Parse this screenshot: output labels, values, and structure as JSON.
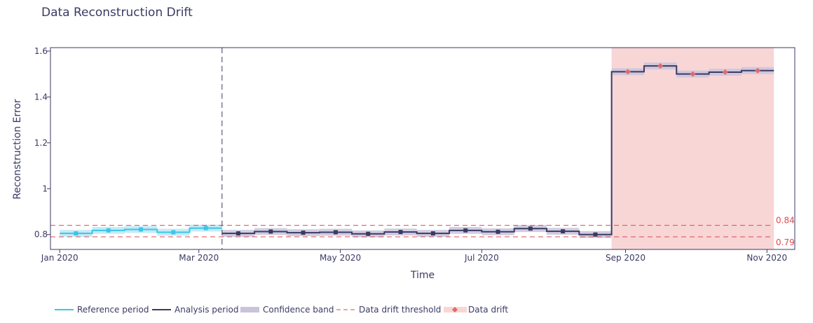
{
  "chart_data": {
    "type": "line",
    "title": "Data Reconstruction Drift",
    "xlabel": "Time",
    "ylabel": "Reconstruction Error",
    "x_ticks": [
      {
        "label": "Jan 2020",
        "date": "2020-01-01"
      },
      {
        "label": "Mar 2020",
        "date": "2020-03-01"
      },
      {
        "label": "May 2020",
        "date": "2020-05-01"
      },
      {
        "label": "Jul 2020",
        "date": "2020-07-01"
      },
      {
        "label": "Sep 2020",
        "date": "2020-09-01"
      },
      {
        "label": "Nov 2020",
        "date": "2020-11-01"
      }
    ],
    "y_ticks": [
      {
        "label": "0.8",
        "value": 0.8
      },
      {
        "label": "1",
        "value": 1.0
      },
      {
        "label": "1.2",
        "value": 1.2
      },
      {
        "label": "1.4",
        "value": 1.4
      },
      {
        "label": "1.6",
        "value": 1.6
      }
    ],
    "xlim": [
      "2019-12-28",
      "2020-11-13"
    ],
    "ylim": [
      0.735,
      1.615
    ],
    "grid": false,
    "legend_position": "bottom",
    "colors": {
      "reference": "#3bc6e8",
      "analysis": "#3b3a64",
      "confidence": "#c9c4dc",
      "threshold": "#dd4b50",
      "drift_marker": "#e26a6a",
      "drift_region": "#f8d6d6",
      "axis": "#3b3a64"
    },
    "series": [
      {
        "name": "Reference period",
        "role": "reference",
        "chunks": [
          {
            "start": "2020-01-01",
            "end": "2020-01-15",
            "value": 0.805,
            "lower": 0.79,
            "upper": 0.82
          },
          {
            "start": "2020-01-15",
            "end": "2020-01-29",
            "value": 0.818,
            "lower": 0.803,
            "upper": 0.833
          },
          {
            "start": "2020-01-29",
            "end": "2020-02-12",
            "value": 0.822,
            "lower": 0.807,
            "upper": 0.837
          },
          {
            "start": "2020-02-12",
            "end": "2020-02-26",
            "value": 0.81,
            "lower": 0.795,
            "upper": 0.825
          },
          {
            "start": "2020-02-26",
            "end": "2020-03-11",
            "value": 0.828,
            "lower": 0.813,
            "upper": 0.843
          }
        ]
      },
      {
        "name": "Analysis period",
        "role": "analysis",
        "chunks": [
          {
            "start": "2020-03-11",
            "end": "2020-03-25",
            "value": 0.805,
            "lower": 0.79,
            "upper": 0.82,
            "drift": false
          },
          {
            "start": "2020-03-25",
            "end": "2020-04-08",
            "value": 0.813,
            "lower": 0.798,
            "upper": 0.828,
            "drift": false
          },
          {
            "start": "2020-04-08",
            "end": "2020-04-22",
            "value": 0.808,
            "lower": 0.793,
            "upper": 0.823,
            "drift": false
          },
          {
            "start": "2020-04-22",
            "end": "2020-05-06",
            "value": 0.81,
            "lower": 0.795,
            "upper": 0.825,
            "drift": false
          },
          {
            "start": "2020-05-06",
            "end": "2020-05-20",
            "value": 0.803,
            "lower": 0.788,
            "upper": 0.818,
            "drift": false
          },
          {
            "start": "2020-05-20",
            "end": "2020-06-03",
            "value": 0.811,
            "lower": 0.796,
            "upper": 0.826,
            "drift": false
          },
          {
            "start": "2020-06-03",
            "end": "2020-06-17",
            "value": 0.805,
            "lower": 0.79,
            "upper": 0.82,
            "drift": false
          },
          {
            "start": "2020-06-17",
            "end": "2020-07-01",
            "value": 0.818,
            "lower": 0.803,
            "upper": 0.833,
            "drift": false
          },
          {
            "start": "2020-07-01",
            "end": "2020-07-15",
            "value": 0.812,
            "lower": 0.797,
            "upper": 0.827,
            "drift": false
          },
          {
            "start": "2020-07-15",
            "end": "2020-07-29",
            "value": 0.826,
            "lower": 0.811,
            "upper": 0.841,
            "drift": false
          },
          {
            "start": "2020-07-29",
            "end": "2020-08-12",
            "value": 0.814,
            "lower": 0.799,
            "upper": 0.829,
            "drift": false
          },
          {
            "start": "2020-08-12",
            "end": "2020-08-26",
            "value": 0.8,
            "lower": 0.785,
            "upper": 0.815,
            "drift": false
          },
          {
            "start": "2020-08-26",
            "end": "2020-09-09",
            "value": 1.51,
            "lower": 1.495,
            "upper": 1.525,
            "drift": true
          },
          {
            "start": "2020-09-09",
            "end": "2020-09-23",
            "value": 1.535,
            "lower": 1.52,
            "upper": 1.55,
            "drift": true
          },
          {
            "start": "2020-09-23",
            "end": "2020-10-07",
            "value": 1.5,
            "lower": 1.485,
            "upper": 1.515,
            "drift": true
          },
          {
            "start": "2020-10-07",
            "end": "2020-10-21",
            "value": 1.508,
            "lower": 1.493,
            "upper": 1.523,
            "drift": true
          },
          {
            "start": "2020-10-21",
            "end": "2020-11-04",
            "value": 1.515,
            "lower": 1.5,
            "upper": 1.53,
            "drift": true
          }
        ]
      }
    ],
    "thresholds": [
      {
        "value": 0.84,
        "label": "0.84"
      },
      {
        "value": 0.79,
        "label": "0.79"
      }
    ],
    "reference_analysis_boundary": "2020-03-11",
    "legend": [
      {
        "label": "Reference period",
        "kind": "line",
        "color_key": "reference"
      },
      {
        "label": "Analysis period",
        "kind": "line",
        "color_key": "analysis"
      },
      {
        "label": "Confidence band",
        "kind": "band",
        "color_key": "confidence"
      },
      {
        "label": "Data drift threshold",
        "kind": "dashed",
        "color_key": "threshold"
      },
      {
        "label": "Data drift",
        "kind": "marker",
        "color_key": "drift_marker"
      }
    ]
  }
}
